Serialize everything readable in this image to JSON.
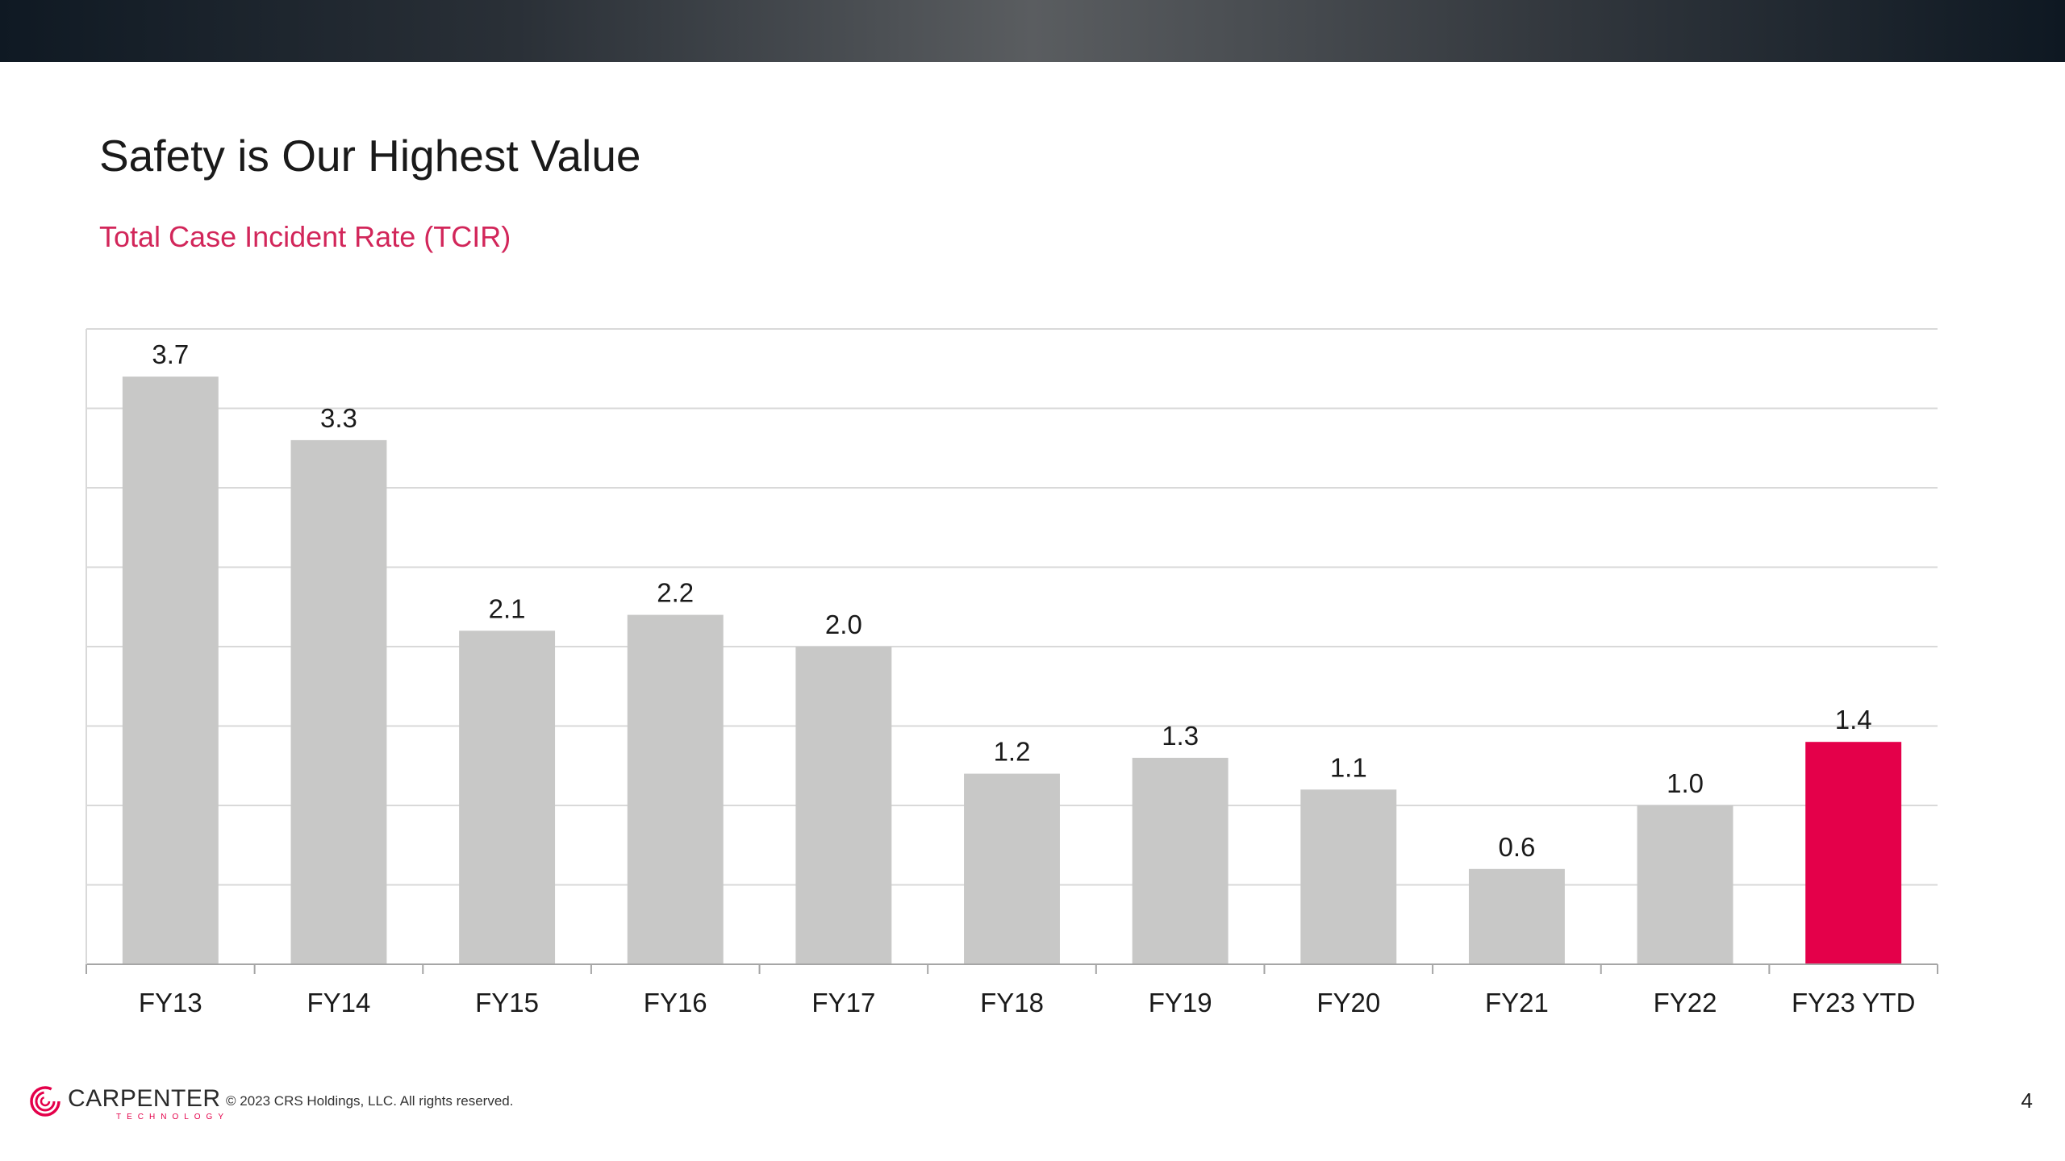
{
  "slide": {
    "title": "Safety is Our Highest Value",
    "subtitle": "Total Case Incident Rate (TCIR)",
    "page_number": "4"
  },
  "footer": {
    "company_name": "CARPENTER",
    "company_tagline": "TECHNOLOGY",
    "copyright": "© 2023 CRS Holdings, LLC. All rights reserved."
  },
  "colors": {
    "bar_default": "#c8c8c7",
    "bar_highlight": "#e4004a",
    "subtitle": "#d2265a",
    "gridline": "#d9d9d9",
    "axis": "#a6a6a6"
  },
  "chart_data": {
    "type": "bar",
    "title": "",
    "xlabel": "",
    "ylabel": "",
    "categories": [
      "FY13",
      "FY14",
      "FY15",
      "FY16",
      "FY17",
      "FY18",
      "FY19",
      "FY20",
      "FY21",
      "FY22",
      "FY23 YTD"
    ],
    "values": [
      3.7,
      3.3,
      2.1,
      2.2,
      2.0,
      1.2,
      1.3,
      1.1,
      0.6,
      1.0,
      1.4
    ],
    "value_labels": [
      "3.7",
      "3.3",
      "2.1",
      "2.2",
      "2.0",
      "1.2",
      "1.3",
      "1.1",
      "0.6",
      "1.0",
      "1.4"
    ],
    "highlight_index": 10,
    "ylim": [
      0,
      4
    ],
    "y_gridline_step": 0.5,
    "grid": true,
    "y_tick_labels_visible": false,
    "legend": "none"
  }
}
